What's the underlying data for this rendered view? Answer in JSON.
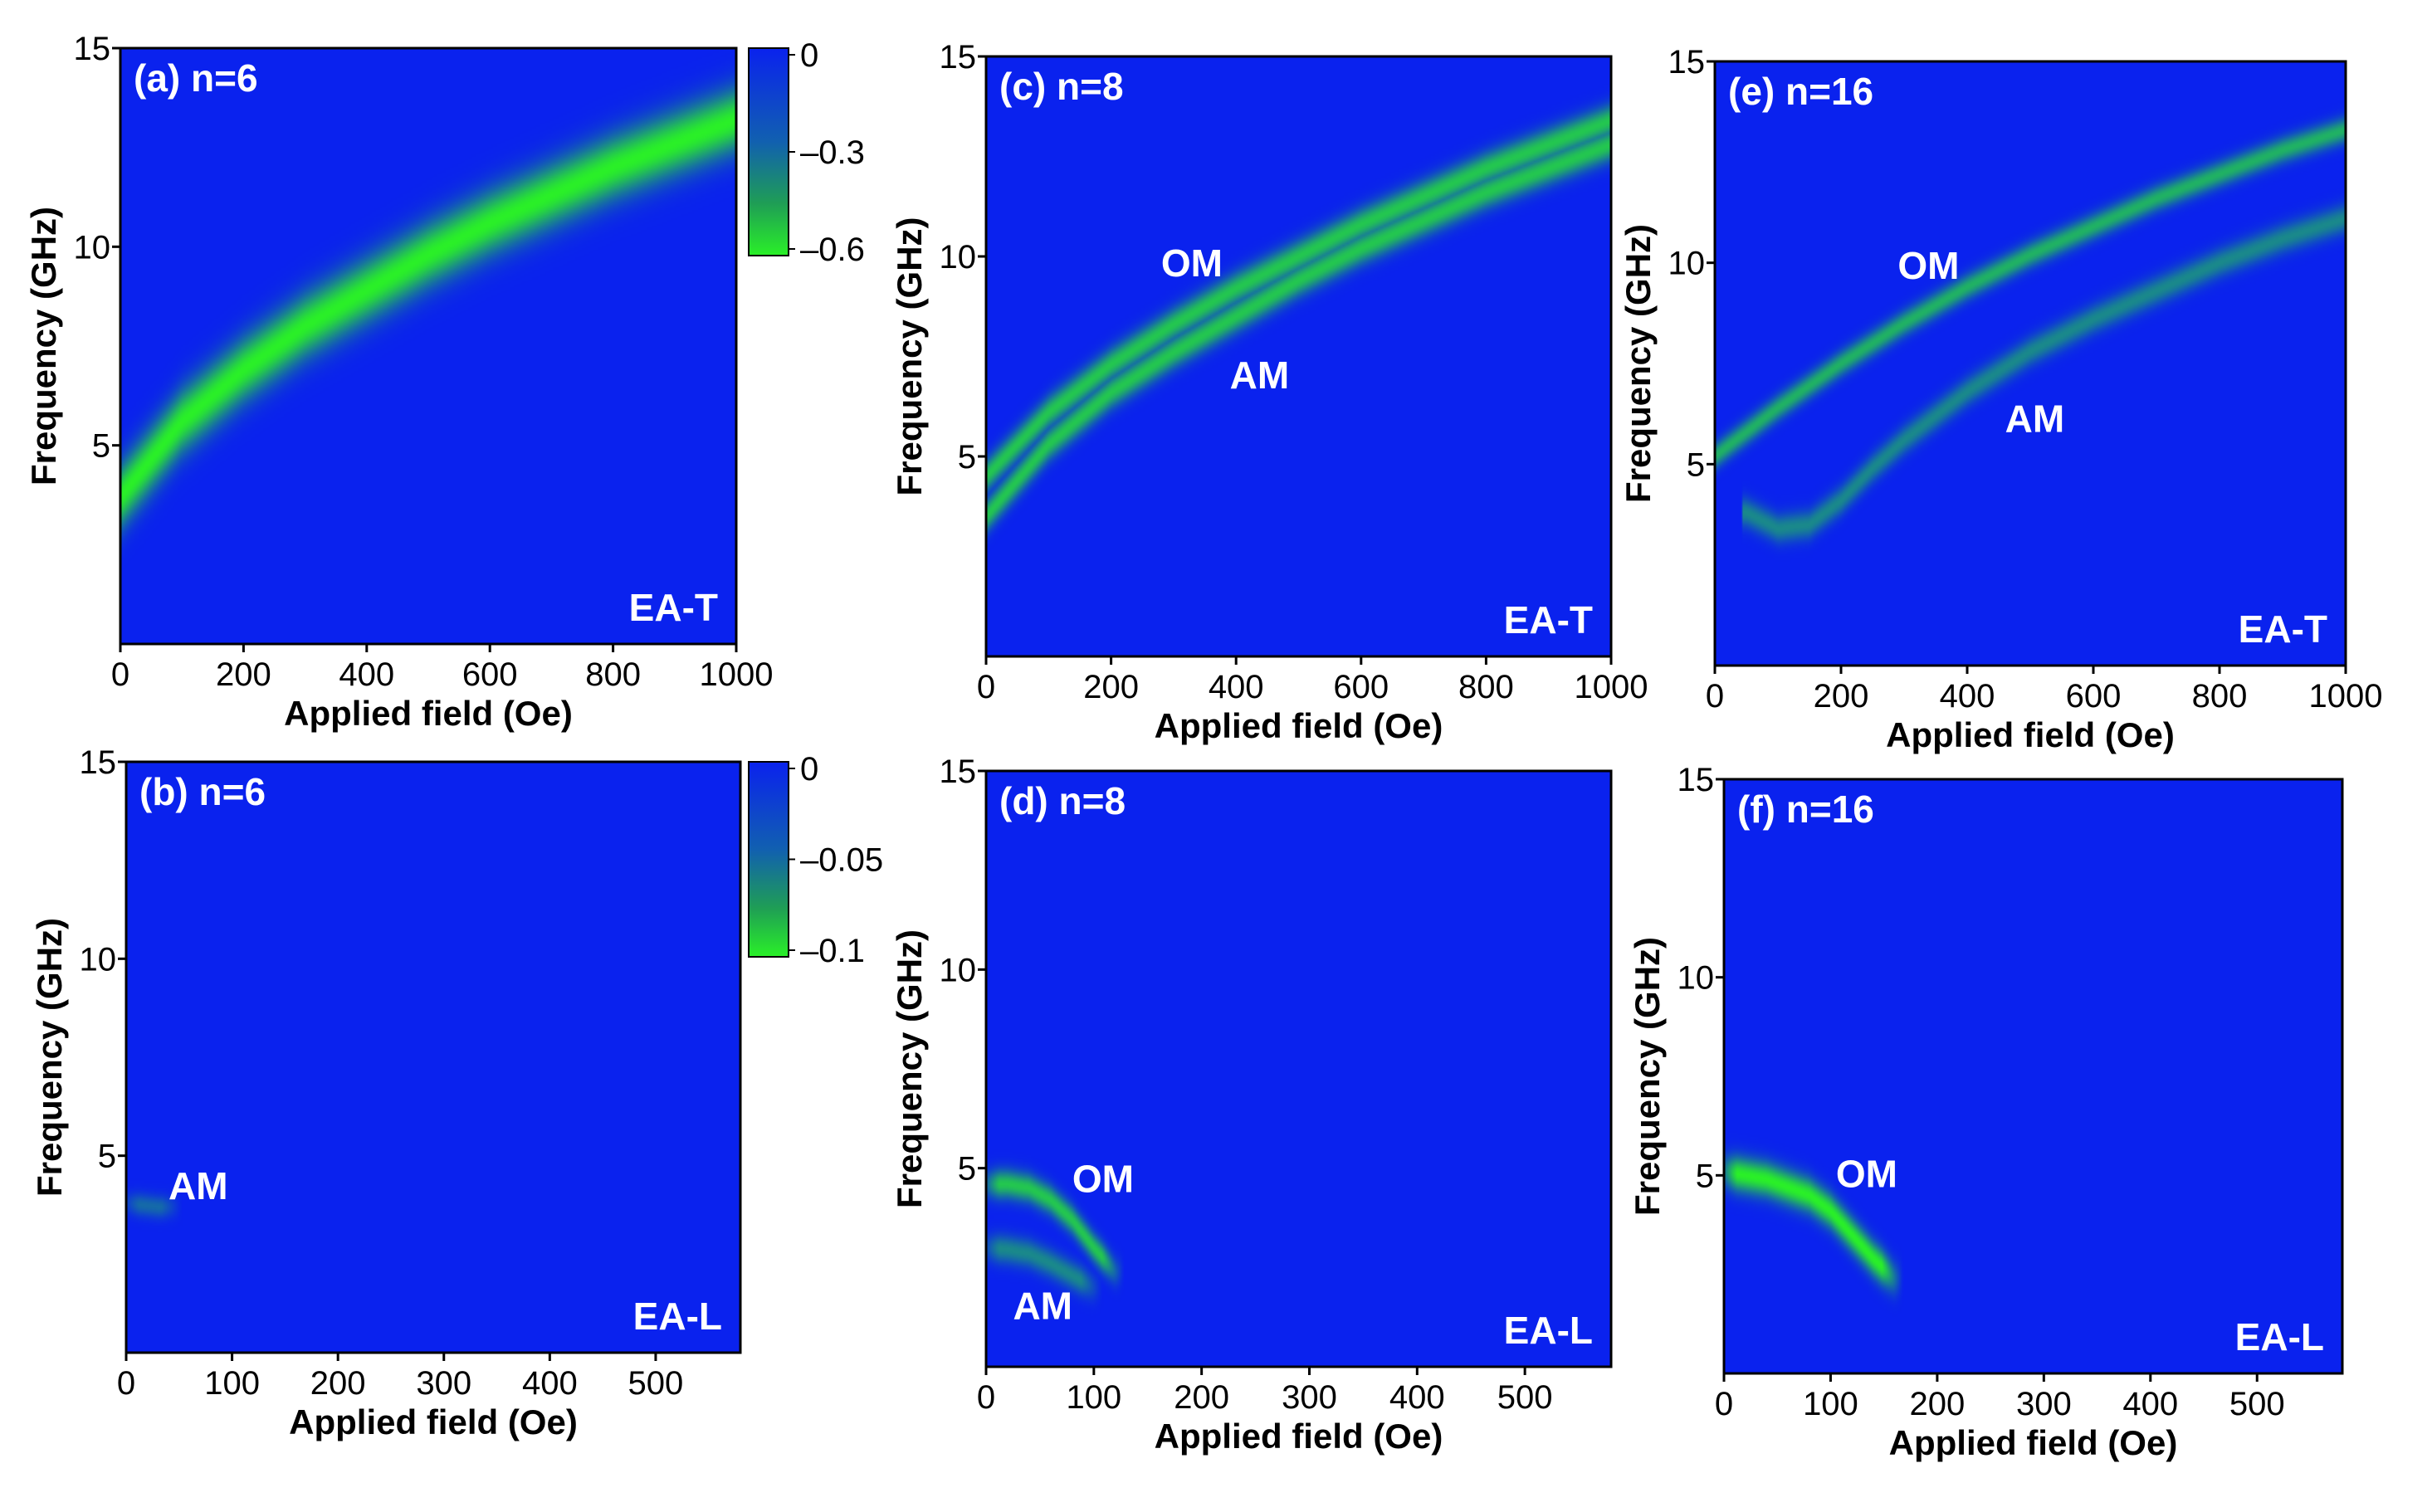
{
  "chart_data": [
    {
      "id": "a",
      "type": "heatmap",
      "title": "(a) n=6",
      "xlabel": "Applied field (Oe)",
      "ylabel": "Frequency (GHz)",
      "xlim": [
        0,
        1000
      ],
      "ylim": [
        0,
        15
      ],
      "xticks": [
        "0",
        "200",
        "400",
        "600",
        "800",
        "1000"
      ],
      "yticks": [
        "5",
        "10",
        "15"
      ],
      "corner_label": "EA-T",
      "modes": [
        {
          "name": "",
          "width": 0.55,
          "strength": 1.0,
          "field": [
            0,
            100,
            200,
            300,
            400,
            500,
            600,
            700,
            800,
            900,
            1000
          ],
          "frequency": [
            3.7,
            5.6,
            6.9,
            8.0,
            8.9,
            9.8,
            10.6,
            11.3,
            12.0,
            12.6,
            13.2
          ]
        }
      ],
      "annotations": [],
      "colorbar": {
        "ticks": [
          "0",
          "–0.3",
          "–0.6"
        ],
        "min": -0.6,
        "max": 0
      }
    },
    {
      "id": "b",
      "type": "heatmap",
      "title": "(b) n=6",
      "xlabel": "Applied field (Oe)",
      "ylabel": "Frequency (GHz)",
      "xlim": [
        0,
        580
      ],
      "ylim": [
        0,
        15
      ],
      "xticks": [
        "0",
        "100",
        "200",
        "300",
        "400",
        "500"
      ],
      "yticks": [
        "5",
        "10",
        "15"
      ],
      "corner_label": "EA-L",
      "modes": [
        {
          "name": "AM",
          "width": 0.2,
          "strength": 0.35,
          "field": [
            0,
            15,
            30,
            45
          ],
          "frequency": [
            3.8,
            3.75,
            3.7,
            3.7
          ]
        }
      ],
      "annotations": [
        {
          "text": "AM",
          "x": 40,
          "y": 3.9
        }
      ],
      "colorbar": {
        "ticks": [
          "0",
          "–0.05",
          "–0.1"
        ],
        "min": -0.1,
        "max": 0
      }
    },
    {
      "id": "c",
      "type": "heatmap",
      "title": "(c) n=8",
      "xlabel": "Applied field (Oe)",
      "ylabel": "Frequency (GHz)",
      "xlim": [
        0,
        1000
      ],
      "ylim": [
        0,
        15
      ],
      "xticks": [
        "0",
        "200",
        "400",
        "600",
        "800",
        "1000"
      ],
      "yticks": [
        "5",
        "10",
        "15"
      ],
      "corner_label": "EA-T",
      "modes": [
        {
          "name": "OM",
          "width": 0.28,
          "strength": 0.8,
          "field": [
            0,
            100,
            200,
            300,
            400,
            500,
            600,
            700,
            800,
            900,
            1000
          ],
          "frequency": [
            4.5,
            6.1,
            7.3,
            8.3,
            9.2,
            10.0,
            10.8,
            11.5,
            12.2,
            12.8,
            13.4
          ]
        },
        {
          "name": "AM",
          "width": 0.28,
          "strength": 0.8,
          "field": [
            0,
            100,
            200,
            300,
            400,
            500,
            600,
            700,
            800,
            900,
            1000
          ],
          "frequency": [
            3.5,
            5.3,
            6.6,
            7.6,
            8.5,
            9.4,
            10.2,
            10.9,
            11.6,
            12.2,
            12.8
          ]
        }
      ],
      "annotations": [
        {
          "text": "OM",
          "x": 280,
          "y": 9.5
        },
        {
          "text": "AM",
          "x": 390,
          "y": 6.7
        }
      ],
      "colorbar": null
    },
    {
      "id": "d",
      "type": "heatmap",
      "title": "(d) n=8",
      "xlabel": "Applied field (Oe)",
      "ylabel": "Frequency (GHz)",
      "xlim": [
        0,
        580
      ],
      "ylim": [
        0,
        15
      ],
      "xticks": [
        "0",
        "100",
        "200",
        "300",
        "400",
        "500"
      ],
      "yticks": [
        "5",
        "10",
        "15"
      ],
      "corner_label": "EA-L",
      "modes": [
        {
          "name": "OM",
          "width": 0.25,
          "strength": 0.8,
          "field": [
            0,
            20,
            40,
            60,
            80,
            100,
            120
          ],
          "frequency": [
            4.6,
            4.6,
            4.5,
            4.2,
            3.7,
            3.0,
            2.4
          ]
        },
        {
          "name": "AM",
          "width": 0.25,
          "strength": 0.5,
          "field": [
            0,
            20,
            40,
            60,
            80,
            100
          ],
          "frequency": [
            3.0,
            2.95,
            2.85,
            2.6,
            2.3,
            2.0
          ]
        }
      ],
      "annotations": [
        {
          "text": "OM",
          "x": 80,
          "y": 4.4
        },
        {
          "text": "AM",
          "x": 25,
          "y": 1.2
        }
      ],
      "colorbar": null
    },
    {
      "id": "e",
      "type": "heatmap",
      "title": "(e) n=16",
      "xlabel": "Applied field (Oe)",
      "ylabel": "Frequency (GHz)",
      "xlim": [
        0,
        1000
      ],
      "ylim": [
        0,
        15
      ],
      "xticks": [
        "0",
        "200",
        "400",
        "600",
        "800",
        "1000"
      ],
      "yticks": [
        "5",
        "10",
        "15"
      ],
      "corner_label": "EA-T",
      "modes": [
        {
          "name": "OM",
          "width": 0.22,
          "strength": 0.7,
          "field": [
            0,
            100,
            200,
            300,
            400,
            500,
            600,
            700,
            800,
            900,
            1000
          ],
          "frequency": [
            5.2,
            6.4,
            7.5,
            8.5,
            9.4,
            10.2,
            10.9,
            11.6,
            12.2,
            12.8,
            13.3
          ]
        },
        {
          "name": "AM",
          "width": 0.25,
          "strength": 0.5,
          "field": [
            50,
            100,
            150,
            200,
            250,
            300,
            400,
            500,
            600,
            700,
            800,
            900,
            1000
          ],
          "frequency": [
            3.8,
            3.4,
            3.5,
            4.1,
            4.9,
            5.6,
            6.8,
            7.8,
            8.6,
            9.3,
            10.0,
            10.6,
            11.1
          ]
        }
      ],
      "annotations": [
        {
          "text": "OM",
          "x": 290,
          "y": 9.6
        },
        {
          "text": "AM",
          "x": 460,
          "y": 5.8
        }
      ],
      "colorbar": null
    },
    {
      "id": "f",
      "type": "heatmap",
      "title": "(f) n=16",
      "xlabel": "Applied field (Oe)",
      "ylabel": "Frequency (GHz)",
      "xlim": [
        0,
        580
      ],
      "ylim": [
        0,
        15
      ],
      "xticks": [
        "0",
        "100",
        "200",
        "300",
        "400",
        "500"
      ],
      "yticks": [
        "5",
        "10",
        "15"
      ],
      "corner_label": "EA-L",
      "modes": [
        {
          "name": "OM",
          "width": 0.3,
          "strength": 1.0,
          "field": [
            0,
            20,
            40,
            60,
            80,
            100,
            120,
            140,
            160
          ],
          "frequency": [
            5.1,
            5.0,
            4.9,
            4.7,
            4.5,
            4.1,
            3.5,
            2.9,
            2.4
          ]
        }
      ],
      "annotations": [
        {
          "text": "OM",
          "x": 105,
          "y": 4.7
        }
      ],
      "colorbar": null
    }
  ]
}
